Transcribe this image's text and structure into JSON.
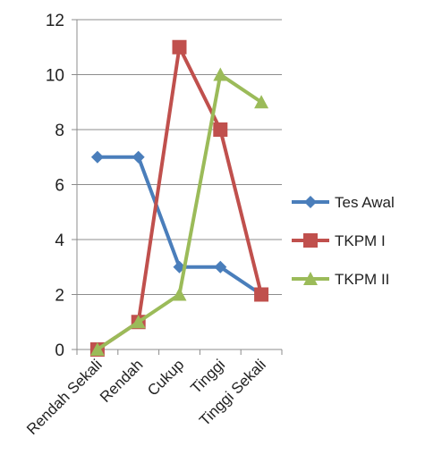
{
  "chart_data": {
    "type": "line",
    "categories": [
      "Rendah Sekali",
      "Rendah",
      "Cukup",
      "Tinggi",
      "Tinggi Sekali"
    ],
    "series": [
      {
        "name": "Tes Awal",
        "values": [
          7,
          7,
          3,
          3,
          2
        ],
        "color": "#4a7ebb",
        "marker": "diamond"
      },
      {
        "name": "TKPM I",
        "values": [
          0,
          1,
          11,
          8,
          2
        ],
        "color": "#c0504d",
        "marker": "square"
      },
      {
        "name": "TKPM II",
        "values": [
          0,
          1,
          2,
          10,
          9
        ],
        "color": "#9bbb59",
        "marker": "triangle"
      }
    ],
    "ylim": [
      0,
      12
    ],
    "yticks": [
      0,
      2,
      4,
      6,
      8,
      10,
      12
    ],
    "grid": true,
    "legend": "right",
    "gridline_color": "#8c8c8c"
  }
}
